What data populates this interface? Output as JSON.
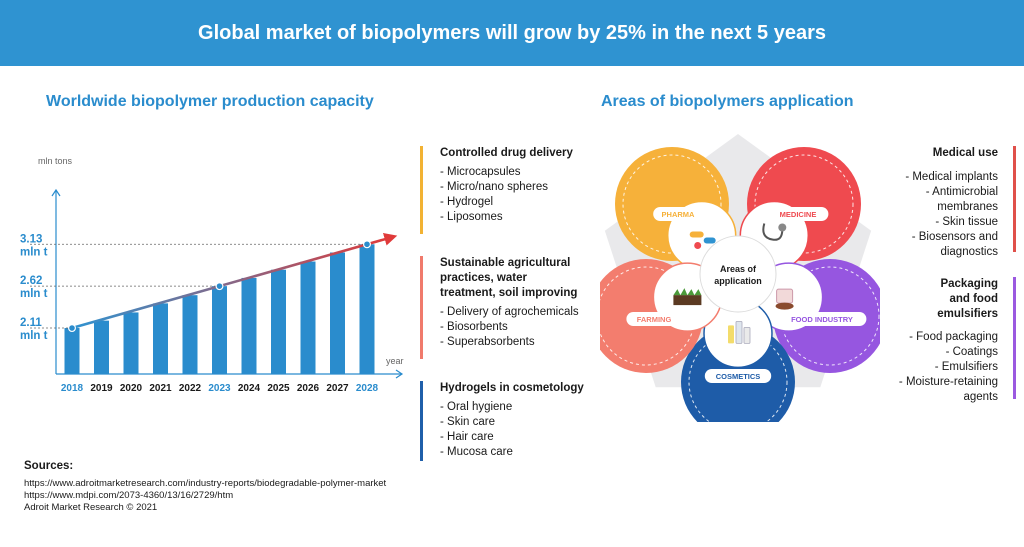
{
  "header": {
    "title": "Global market of biopolymers will grow by 25% in the next 5 years"
  },
  "chart_section": {
    "title": "Worldwide biopolymer production capacity"
  },
  "chart_data": {
    "type": "bar",
    "ylabel": "mln tons",
    "xlabel": "year",
    "categories": [
      "2018",
      "2019",
      "2020",
      "2021",
      "2022",
      "2023",
      "2024",
      "2025",
      "2026",
      "2027",
      "2028"
    ],
    "highlighted_categories": [
      "2018",
      "2023",
      "2028"
    ],
    "values": [
      2.11,
      2.2,
      2.3,
      2.41,
      2.51,
      2.62,
      2.72,
      2.82,
      2.92,
      3.03,
      3.13
    ],
    "annotations": [
      {
        "category": "2018",
        "value": 2.11,
        "label_line1": "2.11",
        "label_line2": "mln t"
      },
      {
        "category": "2023",
        "value": 2.62,
        "label_line1": "2.62",
        "label_line2": "mln t"
      },
      {
        "category": "2028",
        "value": 3.13,
        "label_line1": "3.13",
        "label_line2": "mln t"
      }
    ],
    "ylim": [
      1.55,
      3.45
    ],
    "grid": false,
    "colors": {
      "bar": "#2a8ccd",
      "highlight_text": "#2a8ccd",
      "trend_start": "#2f93d1",
      "trend_end": "#e03a3a"
    }
  },
  "applications_section": {
    "title": "Areas of biopolymers application"
  },
  "left_blocks": [
    {
      "title": "Controlled drug delivery",
      "color": "#f2b233",
      "items": [
        "- Microcapsules",
        "- Micro/nano spheres",
        "- Hydrogel",
        "- Liposomes"
      ]
    },
    {
      "title_lines": [
        "Sustainable agricultural",
        "practices, water",
        "treatment, soil improving"
      ],
      "color": "#f07a6c",
      "items": [
        "- Delivery of agrochemicals",
        "- Biosorbents",
        "- Superabsorbents"
      ]
    },
    {
      "title": "Hydrogels in cosmetology",
      "color": "#1f5faa",
      "items": [
        "- Oral hygiene",
        "- Skin care",
        "- Hair care",
        "- Mucosa care"
      ]
    }
  ],
  "right_blocks": [
    {
      "title": "Medical use",
      "color": "#e0504a",
      "items": [
        "- Medical implants",
        "- Antimicrobial",
        "membranes",
        "- Skin tissue",
        "- Biosensors and",
        "diagnostics"
      ]
    },
    {
      "title_lines": [
        "Packaging",
        "and food",
        "emulsifiers"
      ],
      "color": "#9b59e0",
      "items": [
        "- Food packaging",
        "- Coatings",
        "- Emulsifiers",
        "- Moisture-retaining",
        "agents"
      ]
    }
  ],
  "wheel": {
    "center_label_line1": "Areas of",
    "center_label_line2": "application",
    "segments": [
      {
        "label": "PHARMA",
        "color": "#f6b13a"
      },
      {
        "label": "MEDICINE",
        "color": "#ef4a4f"
      },
      {
        "label": "FOOD INDUSTRY",
        "color": "#9656e0"
      },
      {
        "label": "COSMETICS",
        "color": "#1e5ca8"
      },
      {
        "label": "FARMING",
        "color": "#f37d6e"
      }
    ]
  },
  "sources": {
    "title": "Sources:",
    "lines": [
      "https://www.adroitmarketresearch.com/industry-reports/biodegradable-polymer-market",
      "https://www.mdpi.com/2073-4360/13/16/2729/htm",
      "Adroit Market Research © 2021"
    ]
  }
}
